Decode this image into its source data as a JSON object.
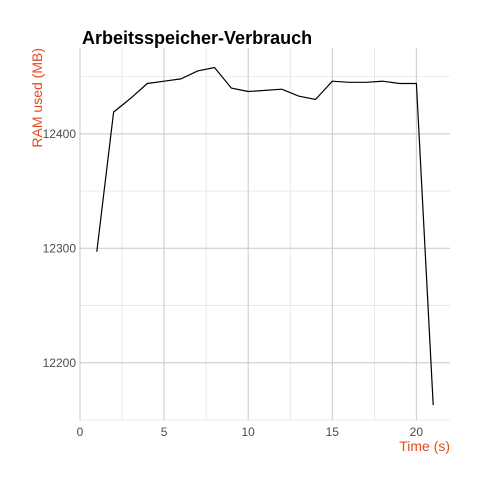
{
  "chart_data": {
    "type": "line",
    "title": "Arbeitsspeicher-Verbrauch",
    "xlabel": "Time (s)",
    "ylabel": "RAM used (MB)",
    "xlim": [
      0,
      22
    ],
    "ylim": [
      12150,
      12475
    ],
    "x_ticks": [
      0,
      5,
      10,
      15,
      20
    ],
    "y_ticks": [
      12200,
      12300,
      12400
    ],
    "grid": true,
    "label_color": "#e8491d",
    "series": [
      {
        "color": "#000000",
        "x": [
          1,
          2,
          3,
          4,
          5,
          6,
          7,
          8,
          9,
          10,
          11,
          12,
          13,
          14,
          15,
          16,
          17,
          18,
          19,
          20,
          21
        ],
        "y": [
          12297,
          12419,
          12431,
          12444,
          12446,
          12448,
          12455,
          12458,
          12440,
          12437,
          12438,
          12439,
          12433,
          12430,
          12446,
          12445,
          12445,
          12446,
          12444,
          12444,
          12163
        ]
      }
    ]
  }
}
